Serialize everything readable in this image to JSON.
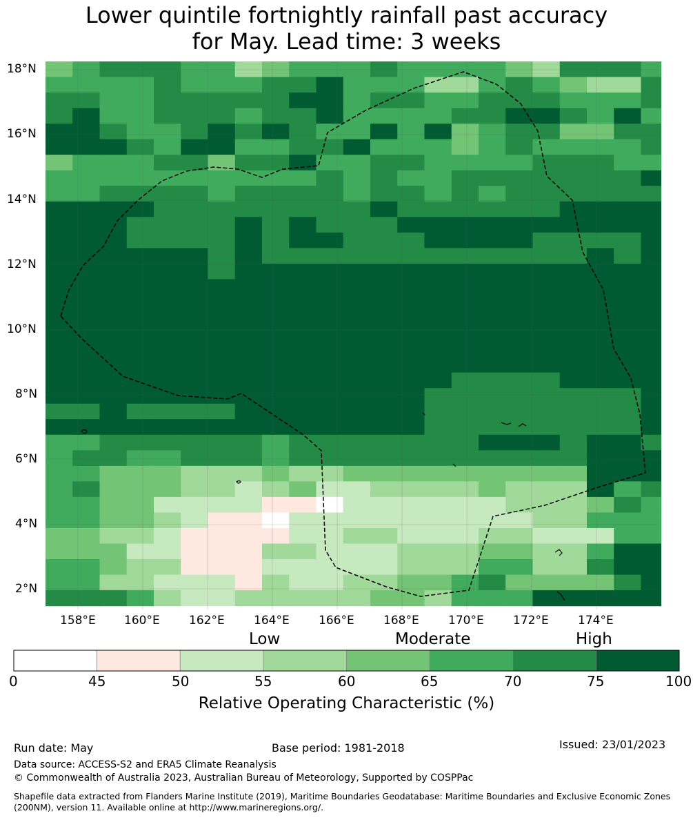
{
  "title": {
    "line1": "Lower quintile fortnightly rainfall past accuracy",
    "line2": "for May. Lead time: 3 weeks"
  },
  "map": {
    "lat_labels": [
      "18°N",
      "16°N",
      "14°N",
      "12°N",
      "10°N",
      "8°N",
      "6°N",
      "4°N",
      "2°N"
    ],
    "lon_labels": [
      "158°E",
      "160°E",
      "162°E",
      "164°E",
      "166°E",
      "168°E",
      "170°E",
      "172°E",
      "174°E"
    ]
  },
  "legend": {
    "categories": [
      "Low",
      "Moderate",
      "High"
    ],
    "ticks": [
      "0",
      "45",
      "50",
      "55",
      "60",
      "65",
      "70",
      "75",
      "100"
    ],
    "colors": [
      "#ffffff",
      "#fee8df",
      "#c7e9c0",
      "#a1d99b",
      "#74c476",
      "#41ab5d",
      "#238b45",
      "#005a32"
    ],
    "label": "Relative Operating Characteristic (%)"
  },
  "footer": {
    "run_date": "Run date: May",
    "base_period": "Base period: 1981-2018",
    "issued": "Issued: 23/01/2023",
    "data_source": "Data source: ACCESS-S2 and ERA5 Climate Reanalysis",
    "copyright": "© Commonwealth of Australia 2023, Australian Bureau of Meteorology, Supported by COSPPac",
    "shapefile": "Shapefile data extracted from Flanders Marine Institute (2019), Maritime Boundaries Geodatabase: Maritime Boundaries and Exclusive Economic Zones (200NM), version 11. Available online at http://www.marineregions.org/."
  }
}
